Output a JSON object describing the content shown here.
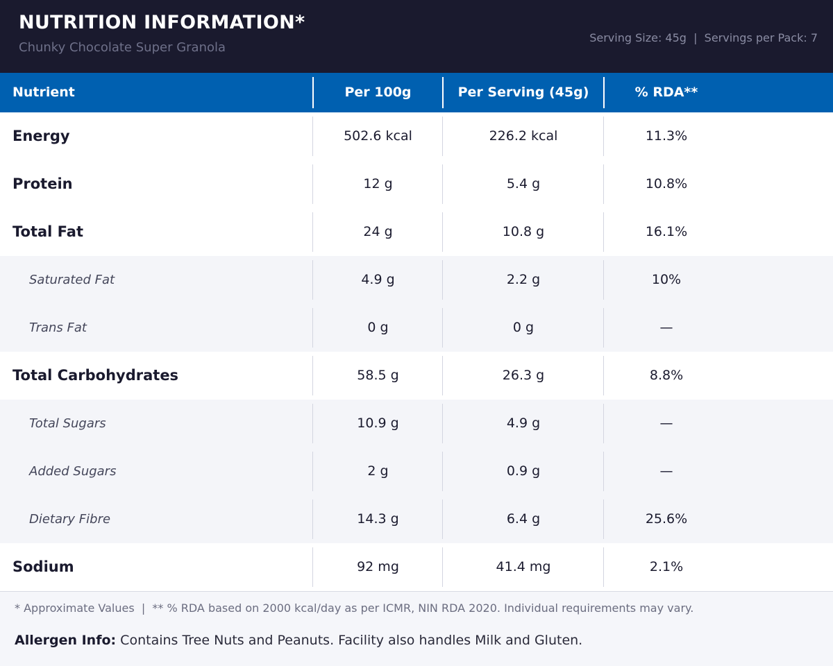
{
  "header": {
    "title": "NUTRITION INFORMATION*",
    "subtitle": "Chunky Chocolate Super Granola",
    "serving_info": "Serving Size: 45g  |  Servings per Pack: 7"
  },
  "table": {
    "columns": [
      "Nutrient",
      "Per 100g",
      "Per Serving (45g)",
      "% RDA**"
    ],
    "rows": [
      {
        "name": "Energy",
        "per100": "502.6 kcal",
        "serving": "226.2 kcal",
        "rda": "11.3%",
        "level": "main"
      },
      {
        "name": "Protein",
        "per100": "12 g",
        "serving": "5.4 g",
        "rda": "10.8%",
        "level": "main"
      },
      {
        "name": "Total Fat",
        "per100": "24 g",
        "serving": "10.8 g",
        "rda": "16.1%",
        "level": "main"
      },
      {
        "name": "Saturated Fat",
        "per100": "4.9 g",
        "serving": "2.2 g",
        "rda": "10%",
        "level": "sub"
      },
      {
        "name": "Trans Fat",
        "per100": "0 g",
        "serving": "0 g",
        "rda": "—",
        "level": "sub"
      },
      {
        "name": "Total Carbohydrates",
        "per100": "58.5 g",
        "serving": "26.3 g",
        "rda": "8.8%",
        "level": "main"
      },
      {
        "name": "Total Sugars",
        "per100": "10.9 g",
        "serving": "4.9 g",
        "rda": "—",
        "level": "sub"
      },
      {
        "name": "Added Sugars",
        "per100": "2 g",
        "serving": "0.9 g",
        "rda": "—",
        "level": "sub"
      },
      {
        "name": "Dietary Fibre",
        "per100": "14.3 g",
        "serving": "6.4 g",
        "rda": "25.6%",
        "level": "sub"
      },
      {
        "name": "Sodium",
        "per100": "92 mg",
        "serving": "41.4 mg",
        "rda": "2.1%",
        "level": "main"
      }
    ]
  },
  "footer": {
    "footnote": "* Approximate Values  |  ** % RDA based on 2000 kcal/day as per ICMR, NIN RDA 2020. Individual requirements may vary.",
    "allergen_label": "Allergen Info:",
    "allergen_text": " Contains Tree Nuts and Peanuts. Facility also handles Milk and Gluten."
  },
  "colors": {
    "header_bg": "#1a1a2e",
    "table_header_bg": "#0060b0",
    "sub_row_bg": "#f4f5f9",
    "page_bg": "#f5f6fa"
  }
}
